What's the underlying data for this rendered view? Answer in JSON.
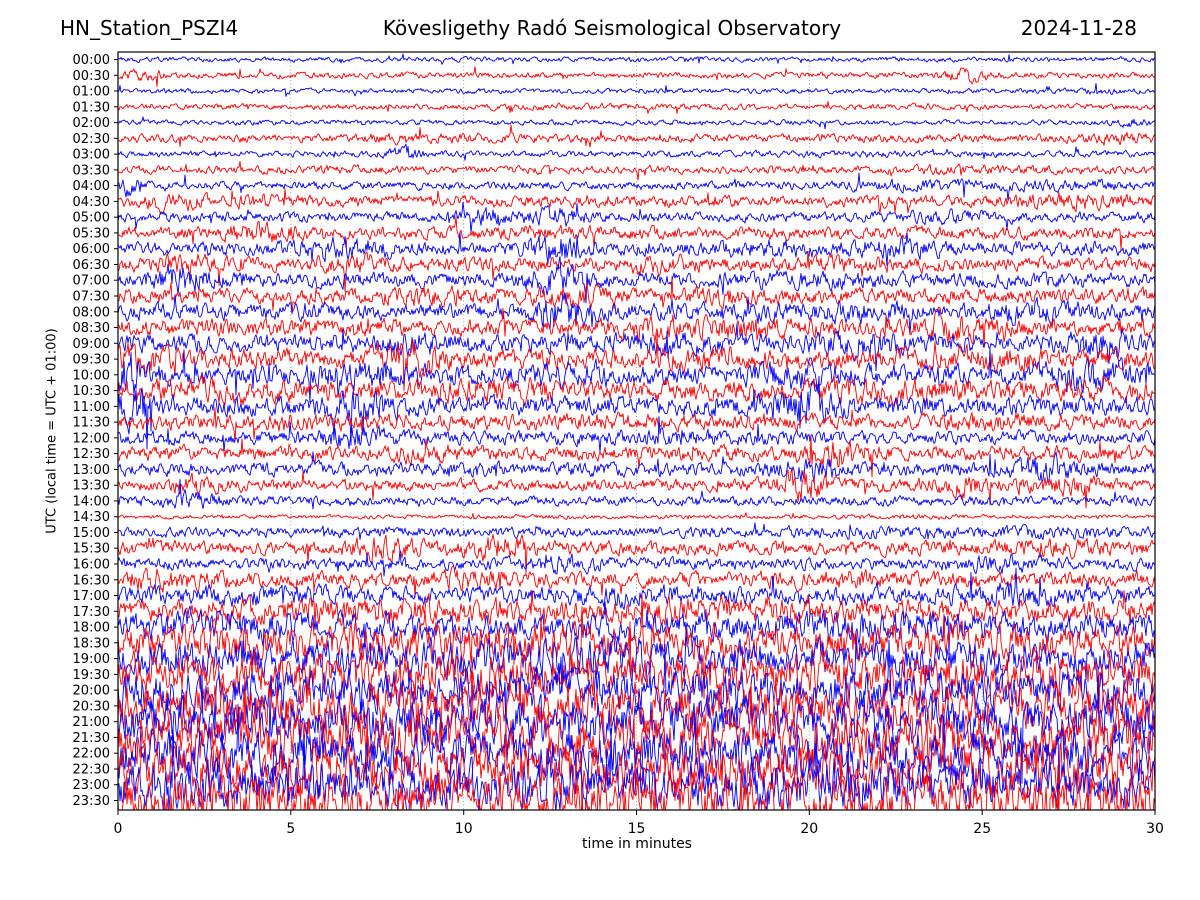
{
  "header": {
    "station": "HN_Station_PSZI4",
    "observatory": "Kövesligethy Radó Seismological Observatory",
    "date": "2024-11-28"
  },
  "chart_data": {
    "type": "line",
    "subtype": "helicorder-seismogram",
    "title": "Kövesligethy Radó Seismological Observatory",
    "station": "HN_Station_PSZI4",
    "date": "2024-11-28",
    "xlabel": "time in minutes",
    "ylabel": "UTC (local time = UTC + 01:00)",
    "x_range": [
      0,
      30
    ],
    "x_ticks": [
      0,
      5,
      10,
      15,
      20,
      25,
      30
    ],
    "grid_minutes": [
      5,
      10,
      15,
      20,
      25
    ],
    "grid_style": "dotted",
    "legend": "none",
    "minutes_per_row": 30,
    "trace_colors": {
      "b": "#0000ff",
      "r": "#ff0000"
    },
    "rows": [
      {
        "label": "00:00",
        "color": "b",
        "amp": 2.2,
        "bursts": []
      },
      {
        "label": "00:30",
        "color": "r",
        "amp": 2.6,
        "bursts": [
          [
            0.8,
            0.6,
            2.2
          ],
          [
            24.6,
            0.8,
            2.6
          ]
        ]
      },
      {
        "label": "01:00",
        "color": "b",
        "amp": 2.2,
        "bursts": [
          [
            28.5,
            0.5,
            1.8
          ]
        ]
      },
      {
        "label": "01:30",
        "color": "r",
        "amp": 2.5,
        "bursts": [
          [
            14,
            3,
            1.3
          ]
        ]
      },
      {
        "label": "02:00",
        "color": "b",
        "amp": 2.3,
        "bursts": [
          [
            29.3,
            0.5,
            2.2
          ]
        ]
      },
      {
        "label": "02:30",
        "color": "r",
        "amp": 3.6,
        "bursts": [
          [
            9,
            2,
            1.4
          ],
          [
            29,
            0.8,
            1.8
          ]
        ]
      },
      {
        "label": "03:00",
        "color": "b",
        "amp": 2.6,
        "bursts": [
          [
            8.3,
            0.5,
            2.6
          ],
          [
            20,
            4,
            1.2
          ]
        ]
      },
      {
        "label": "03:30",
        "color": "r",
        "amp": 3.4,
        "bursts": [
          [
            6,
            2,
            1.3
          ],
          [
            25,
            2,
            1.4
          ]
        ]
      },
      {
        "label": "04:00",
        "color": "b",
        "amp": 3.6,
        "bursts": [
          [
            0.35,
            0.25,
            3.2
          ],
          [
            23,
            2,
            1.6
          ],
          [
            27.5,
            1.5,
            1.7
          ]
        ]
      },
      {
        "label": "04:30",
        "color": "r",
        "amp": 5.0,
        "bursts": [
          [
            1.6,
            0.7,
            1.9
          ],
          [
            4.2,
            0.8,
            1.6
          ],
          [
            27.8,
            1.4,
            1.8
          ]
        ]
      },
      {
        "label": "05:00",
        "color": "b",
        "amp": 4.4,
        "bursts": [
          [
            10.6,
            0.7,
            2.2
          ],
          [
            12.6,
            0.9,
            2.3
          ],
          [
            24,
            1.5,
            1.5
          ]
        ]
      },
      {
        "label": "05:30",
        "color": "r",
        "amp": 5.4,
        "bursts": [
          [
            4.2,
            1.2,
            1.8
          ],
          [
            13,
            2,
            1.3
          ]
        ]
      },
      {
        "label": "06:00",
        "color": "b",
        "amp": 6.0,
        "bursts": [
          [
            6.5,
            1.2,
            2.1
          ],
          [
            12.6,
            0.7,
            2.8
          ],
          [
            19,
            1.5,
            1.5
          ],
          [
            22.6,
            1,
            1.8
          ]
        ]
      },
      {
        "label": "06:30",
        "color": "r",
        "amp": 6.0,
        "bursts": [
          [
            2,
            1,
            1.7
          ],
          [
            7,
            1.2,
            1.6
          ],
          [
            15.6,
            1,
            1.6
          ],
          [
            21,
            1.5,
            1.4
          ]
        ]
      },
      {
        "label": "07:00",
        "color": "b",
        "amp": 6.4,
        "bursts": [
          [
            1.8,
            0.8,
            2.4
          ],
          [
            12.7,
            0.9,
            2.6
          ],
          [
            20,
            2,
            1.4
          ]
        ]
      },
      {
        "label": "07:30",
        "color": "r",
        "amp": 6.4,
        "bursts": [
          [
            9,
            1.5,
            1.5
          ],
          [
            13.2,
            1,
            1.7
          ],
          [
            17.6,
            1.2,
            1.6
          ]
        ]
      },
      {
        "label": "08:00",
        "color": "b",
        "amp": 7.2,
        "bursts": [
          [
            12.8,
            0.8,
            2.4
          ],
          [
            21.5,
            1.5,
            1.5
          ],
          [
            26.5,
            1.2,
            1.7
          ]
        ]
      },
      {
        "label": "08:30",
        "color": "r",
        "amp": 7.6,
        "bursts": [
          [
            15.5,
            1,
            1.7
          ],
          [
            18,
            1.2,
            1.6
          ],
          [
            24,
            1,
            2
          ]
        ]
      },
      {
        "label": "09:00",
        "color": "b",
        "amp": 8.0,
        "bursts": [
          [
            8.5,
            1,
            1.6
          ],
          [
            16,
            1.2,
            1.5
          ],
          [
            21.5,
            1.5,
            1.6
          ],
          [
            28.6,
            0.9,
            2.1
          ]
        ]
      },
      {
        "label": "09:30",
        "color": "r",
        "amp": 8.5,
        "bursts": [
          [
            0.6,
            0.8,
            1.8
          ],
          [
            8.6,
            0.9,
            1.8
          ],
          [
            17,
            1.5,
            1.4
          ],
          [
            25,
            1.5,
            1.5
          ]
        ]
      },
      {
        "label": "10:00",
        "color": "b",
        "amp": 9.0,
        "bursts": [
          [
            0.25,
            0.4,
            2.8
          ],
          [
            7,
            1.5,
            1.5
          ],
          [
            13,
            1.5,
            1.5
          ],
          [
            19.6,
            1.2,
            1.6
          ],
          [
            28,
            1,
            2
          ]
        ]
      },
      {
        "label": "10:30",
        "color": "r",
        "amp": 9.0,
        "bursts": [
          [
            3,
            2,
            1.3
          ],
          [
            11,
            2,
            1.3
          ],
          [
            22,
            2,
            1.4
          ]
        ]
      },
      {
        "label": "11:00",
        "color": "b",
        "amp": 8.5,
        "bursts": [
          [
            0.5,
            0.6,
            2.6
          ],
          [
            7,
            1,
            2
          ],
          [
            19.8,
            0.9,
            2.2
          ]
        ]
      },
      {
        "label": "11:30",
        "color": "r",
        "amp": 6.5,
        "bursts": [
          [
            5,
            2,
            1.3
          ],
          [
            14,
            2,
            1.3
          ],
          [
            25,
            2,
            1.4
          ]
        ]
      },
      {
        "label": "12:00",
        "color": "b",
        "amp": 6.0,
        "bursts": [
          [
            6.8,
            1,
            2
          ],
          [
            16,
            2,
            1.3
          ]
        ]
      },
      {
        "label": "12:30",
        "color": "r",
        "amp": 6.4,
        "bursts": [
          [
            9,
            1.2,
            1.6
          ],
          [
            20.8,
            0.9,
            2.2
          ]
        ]
      },
      {
        "label": "13:00",
        "color": "b",
        "amp": 6.0,
        "bursts": [
          [
            20,
            1,
            2.1
          ],
          [
            26.8,
            1,
            2.2
          ]
        ]
      },
      {
        "label": "13:30",
        "color": "r",
        "amp": 5.4,
        "bursts": [
          [
            2.3,
            0.8,
            1.7
          ],
          [
            19.8,
            0.7,
            2.8
          ],
          [
            24.5,
            1,
            1.8
          ],
          [
            27.5,
            1,
            1.9
          ]
        ]
      },
      {
        "label": "14:00",
        "color": "b",
        "amp": 4.2,
        "bursts": [
          [
            2.2,
            0.8,
            2.2
          ]
        ]
      },
      {
        "label": "14:30",
        "color": "r",
        "amp": 1.8,
        "bursts": [
          [
            13,
            1.5,
            1.3
          ],
          [
            23,
            1.5,
            1.3
          ]
        ]
      },
      {
        "label": "15:00",
        "color": "b",
        "amp": 4.4,
        "bursts": [
          [
            22,
            3,
            1.3
          ],
          [
            27.5,
            2,
            1.5
          ]
        ]
      },
      {
        "label": "15:30",
        "color": "r",
        "amp": 6.0,
        "bursts": [
          [
            7.6,
            0.9,
            2.1
          ],
          [
            11,
            0.9,
            2.2
          ],
          [
            27,
            2,
            1.4
          ]
        ]
      },
      {
        "label": "16:00",
        "color": "b",
        "amp": 5.2,
        "bursts": [
          [
            13,
            1.2,
            1.7
          ],
          [
            25.5,
            1.5,
            1.6
          ]
        ]
      },
      {
        "label": "16:30",
        "color": "r",
        "amp": 6.6,
        "bursts": [
          [
            1,
            1.5,
            1.7
          ],
          [
            10,
            1.5,
            1.5
          ],
          [
            21,
            2,
            1.3
          ]
        ]
      },
      {
        "label": "17:00",
        "color": "b",
        "amp": 7.4,
        "bursts": [
          [
            4,
            2,
            1.4
          ],
          [
            15,
            2,
            1.3
          ],
          [
            26,
            2,
            1.5
          ]
        ]
      },
      {
        "label": "17:30",
        "color": "r",
        "amp": 10.0,
        "bursts": [
          [
            7,
            3,
            1.3
          ],
          [
            18,
            3,
            1.3
          ]
        ]
      },
      {
        "label": "18:00",
        "color": "b",
        "amp": 11.0,
        "bursts": [
          [
            3,
            2,
            1.4
          ],
          [
            22,
            3,
            1.3
          ]
        ]
      },
      {
        "label": "18:30",
        "color": "r",
        "amp": 15.0,
        "bursts": [
          [
            8,
            4,
            1.2
          ]
        ]
      },
      {
        "label": "19:00",
        "color": "b",
        "amp": 15.0,
        "bursts": [
          [
            14,
            4,
            1.2
          ]
        ]
      },
      {
        "label": "19:30",
        "color": "r",
        "amp": 18.0,
        "bursts": []
      },
      {
        "label": "20:00",
        "color": "b",
        "amp": 18.0,
        "bursts": []
      },
      {
        "label": "20:30",
        "color": "r",
        "amp": 20.0,
        "bursts": []
      },
      {
        "label": "21:00",
        "color": "b",
        "amp": 20.0,
        "bursts": []
      },
      {
        "label": "21:30",
        "color": "r",
        "amp": 21.0,
        "bursts": []
      },
      {
        "label": "22:00",
        "color": "b",
        "amp": 21.0,
        "bursts": []
      },
      {
        "label": "22:30",
        "color": "r",
        "amp": 21.0,
        "bursts": []
      },
      {
        "label": "23:00",
        "color": "b",
        "amp": 21.0,
        "bursts": []
      },
      {
        "label": "23:30",
        "color": "r",
        "amp": 21.0,
        "bursts": []
      }
    ]
  }
}
